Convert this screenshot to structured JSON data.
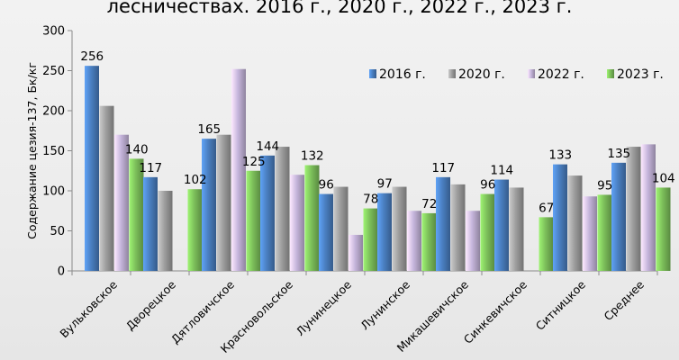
{
  "chart_data": {
    "type": "bar",
    "title": "лесничествах. 2016 г., 2020 г., 2022 г., 2023 г.",
    "ylabel": "Содержание цезия-137, Бк/кг",
    "xlabel": "",
    "ylim": [
      0,
      300
    ],
    "yticks": [
      0,
      50,
      100,
      150,
      200,
      250,
      300
    ],
    "grid": false,
    "legend_position": "top-right",
    "categories": [
      "Вульковское",
      "Дворецкое",
      "Дятловичское",
      "Красновольское",
      "Лунинецкое",
      "Лунинское",
      "Микашевичское",
      "Синкевичское",
      "Ситницкое",
      "Среднее"
    ],
    "series": [
      {
        "name": "2016 г.",
        "color": "#4a7fc1",
        "values": [
          256,
          117,
          165,
          144,
          96,
          97,
          117,
          114,
          133,
          135
        ]
      },
      {
        "name": "2020 г.",
        "color": "#9e9e9e",
        "values": [
          206,
          100,
          170,
          155,
          105,
          105,
          108,
          104,
          119,
          155
        ]
      },
      {
        "name": "2022 г.",
        "color": "#c6b6dc",
        "values": [
          170,
          0,
          252,
          120,
          45,
          75,
          75,
          0,
          93,
          158
        ]
      },
      {
        "name": "2023 г.",
        "color": "#7cbf5a",
        "values": [
          140,
          102,
          125,
          132,
          78,
          72,
          96,
          67,
          95,
          104
        ]
      }
    ],
    "data_labels": {
      "2016 г.": [
        256,
        117,
        165,
        144,
        96,
        97,
        117,
        114,
        133,
        135
      ],
      "2023 г.": [
        140,
        102,
        125,
        132,
        78,
        72,
        96,
        67,
        95,
        104
      ]
    }
  }
}
